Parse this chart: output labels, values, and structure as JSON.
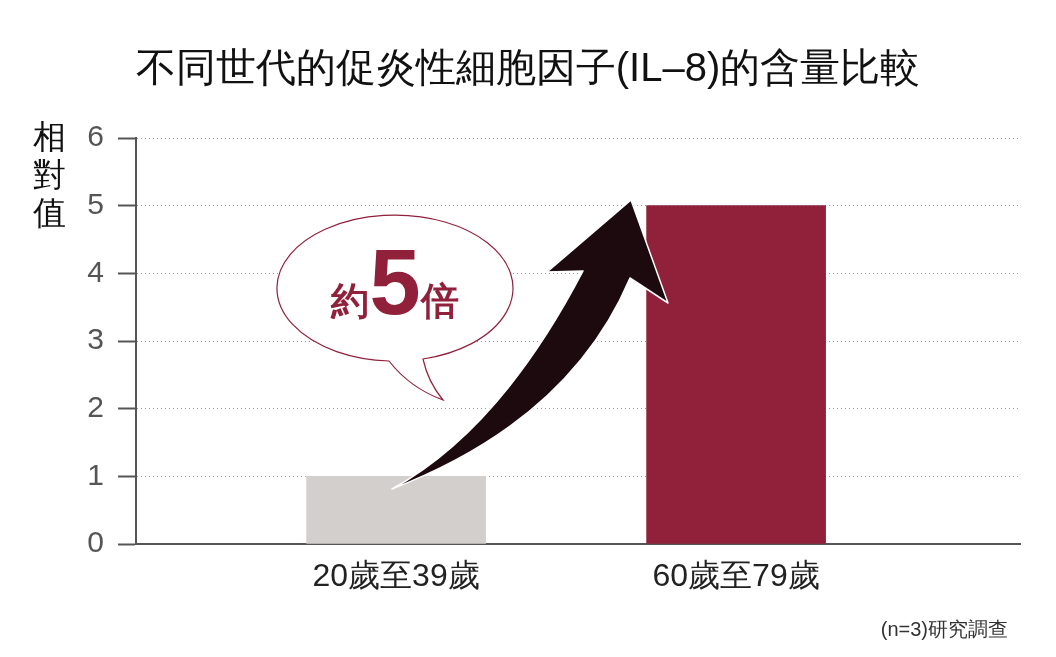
{
  "chart_data": {
    "type": "bar",
    "title": "不同世代的促炎性細胞因子(IL–8)的含量比較",
    "ylabel": "相對值",
    "categories": [
      "20歲至39歲",
      "60歲至79歲"
    ],
    "values": [
      1,
      5
    ],
    "colors": [
      "#d3cfcc",
      "#91203b"
    ],
    "ylim": [
      0,
      6
    ],
    "yticks": [
      0,
      1,
      2,
      3,
      4,
      5,
      6
    ],
    "grid": "y",
    "annotations": [
      "約5倍",
      "(n=3)研究調查"
    ]
  }
}
